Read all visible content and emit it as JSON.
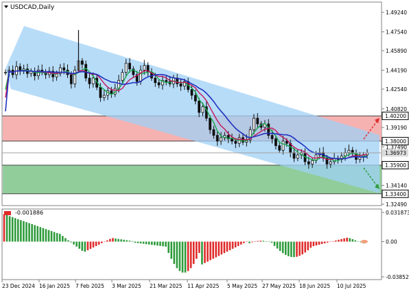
{
  "chart_data": [
    {
      "type": "candlestick",
      "title": "USDCAD,Daily",
      "title_icon": "dropdown-triangle-icon",
      "ylim": [
        1.3249,
        1.4924
      ],
      "price_axis_ticks": [
        "1.49240",
        "1.47540",
        "1.45890",
        "1.44190",
        "1.42540",
        "1.40820",
        "1.39190",
        "1.37490",
        "1.35900",
        "1.34140",
        "1.32490"
      ],
      "tick_values": [
        1.4924,
        1.4754,
        1.4589,
        1.4419,
        1.4254,
        1.4082,
        1.3919,
        1.3749,
        1.359,
        1.3414,
        1.3249
      ],
      "price_levels": [
        {
          "label": "1.40200",
          "value": 1.402,
          "style": "box"
        },
        {
          "label": "1.38000",
          "value": 1.38,
          "style": "box"
        },
        {
          "label": "1.36973",
          "value": 1.36973,
          "style": "current"
        },
        {
          "label": "1.35900",
          "value": 1.359,
          "style": "box"
        },
        {
          "label": "1.33400",
          "value": 1.334,
          "style": "box"
        }
      ],
      "zones": [
        {
          "name": "resistance",
          "from": 1.38,
          "to": 1.402,
          "color": "#f4a3a3"
        },
        {
          "name": "support",
          "from": 1.334,
          "to": 1.359,
          "color": "#7ec48a"
        }
      ],
      "channel": {
        "color": "#9fd0f5"
      },
      "arrows": [
        {
          "direction": "up",
          "color": "#e03030"
        },
        {
          "direction": "down",
          "color": "#2e9b3b"
        }
      ],
      "candles_close": [
        1.44,
        1.442,
        1.438,
        1.445,
        1.441,
        1.443,
        1.439,
        1.441,
        1.437,
        1.442,
        1.44,
        1.438,
        1.441,
        1.436,
        1.439,
        1.444,
        1.442,
        1.438,
        1.43,
        1.442,
        1.45,
        1.447,
        1.435,
        1.43,
        1.435,
        1.427,
        1.418,
        1.42,
        1.424,
        1.421,
        1.426,
        1.433,
        1.44,
        1.448,
        1.443,
        1.438,
        1.432,
        1.442,
        1.446,
        1.44,
        1.435,
        1.431,
        1.429,
        1.433,
        1.432,
        1.43,
        1.435,
        1.43,
        1.428,
        1.432,
        1.425,
        1.42,
        1.415,
        1.405,
        1.41,
        1.4,
        1.39,
        1.385,
        1.38,
        1.383,
        1.385,
        1.382,
        1.38,
        1.378,
        1.383,
        1.379,
        1.381,
        1.39,
        1.4,
        1.395,
        1.392,
        1.395,
        1.385,
        1.382,
        1.376,
        1.372,
        1.38,
        1.378,
        1.37,
        1.365,
        1.368,
        1.37,
        1.362,
        1.36,
        1.363,
        1.368,
        1.37,
        1.365,
        1.36,
        1.362,
        1.365,
        1.364,
        1.367,
        1.37,
        1.372,
        1.369,
        1.364,
        1.366,
        1.368,
        1.3697
      ],
      "ema_fast_name": "",
      "oscillator": {
        "label": "-0.001886",
        "value": -0.001886,
        "axis_ticks": [
          "0.031873",
          "0.00",
          "-0.038529"
        ],
        "axis_values": [
          0.031873,
          0.0,
          -0.038529
        ],
        "ylim": [
          -0.038529,
          0.031873
        ],
        "positive_color": "#e02b2b",
        "negative_color": "#2e9b3b"
      },
      "x_tick_labels": [
        "23 Dec 2024",
        "16 Jan 2025",
        "7 Feb 2025",
        "3 Mar 2025",
        "21 Mar 2025",
        "11 Apr 2025",
        "5 May 2025",
        "27 May 2025",
        "18 Jun 2025",
        "10 Jul 2025"
      ]
    }
  ]
}
